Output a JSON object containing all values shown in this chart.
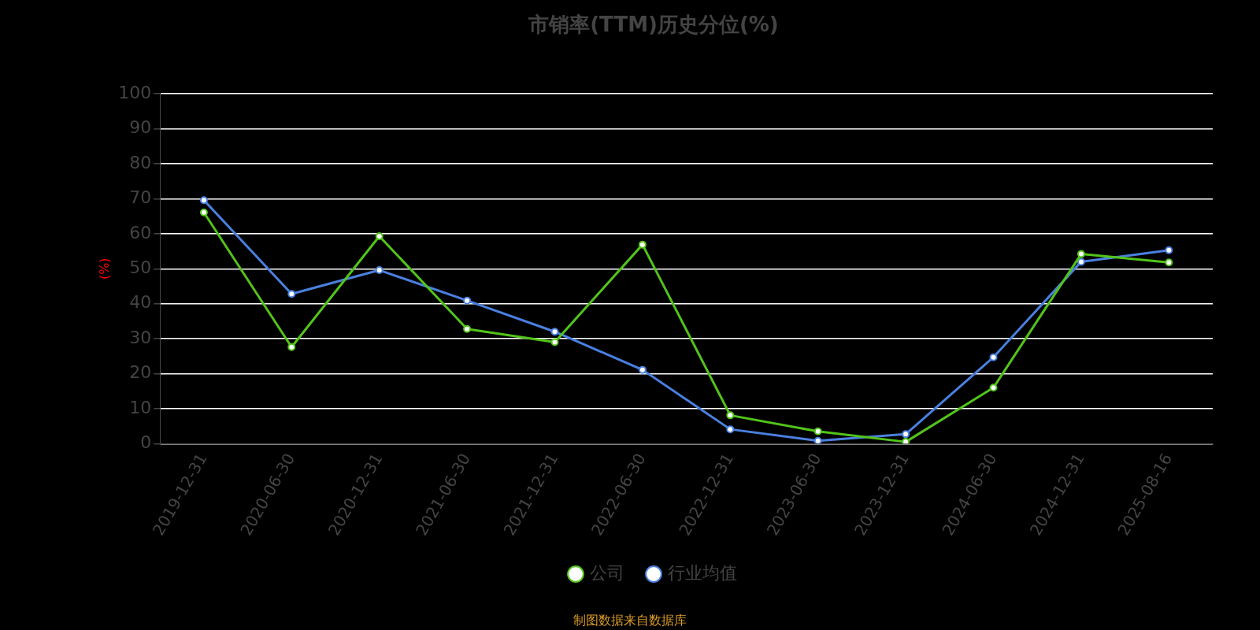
{
  "chart_data": {
    "type": "line",
    "title": "市销率(TTM)历史分位(%)",
    "ylabel": "(%)",
    "categories": [
      "2019-12-31",
      "2020-06-30",
      "2020-12-31",
      "2021-06-30",
      "2021-12-31",
      "2022-06-30",
      "2022-12-31",
      "2023-06-30",
      "2023-12-31",
      "2024-06-30",
      "2024-12-31",
      "2025-08-16"
    ],
    "series": [
      {
        "name": "公司",
        "color": "#52c41a",
        "values": [
          66.1,
          27.6,
          59.3,
          32.8,
          29,
          56.9,
          8.1,
          3.5,
          0.5,
          16,
          54.2,
          51.8
        ]
      },
      {
        "name": "行业均值",
        "color": "#4a80e0",
        "values": [
          69.6,
          42.8,
          49.6,
          40.9,
          32,
          21.1,
          4.1,
          0.8,
          2.7,
          24.7,
          52,
          55.3
        ]
      }
    ],
    "ylim": [
      0,
      100
    ],
    "yticks": [
      0,
      10,
      20,
      30,
      40,
      50,
      60,
      70,
      80,
      90,
      100
    ],
    "grid": "y",
    "legend": "bottom",
    "marker": "circle",
    "line_style": "solid",
    "annotations": [
      "制图数据来自数据库"
    ]
  }
}
